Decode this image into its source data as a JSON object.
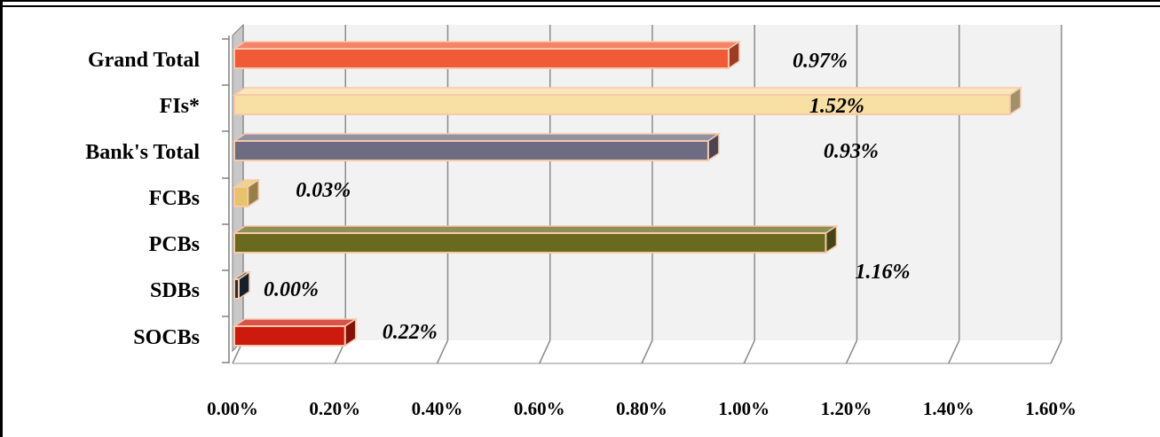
{
  "chart_data": {
    "type": "bar",
    "orientation": "horizontal",
    "style": "3d",
    "categories": [
      "Grand Total",
      "FIs*",
      "Bank's Total",
      "FCBs",
      "PCBs",
      "SDBs",
      "SOCBs"
    ],
    "values": [
      0.97,
      1.52,
      0.93,
      0.03,
      1.16,
      0.0,
      0.22
    ],
    "data_labels": [
      "0.97%",
      "1.52%",
      "0.93%",
      "0.03%",
      "1.16%",
      "0.00%",
      "0.22%"
    ],
    "bar_colors": [
      "#F15A37",
      "#F8DFA3",
      "#6E6C82",
      "#E7C46A",
      "#6A6A1E",
      "#1F3244",
      "#CC1A0E"
    ],
    "x_ticks": [
      0,
      0.2,
      0.4,
      0.6,
      0.8,
      1.0,
      1.2,
      1.4,
      1.6
    ],
    "x_tick_labels": [
      "0.00%",
      "0.20%",
      "0.40%",
      "0.60%",
      "0.80%",
      "1.00%",
      "1.20%",
      "1.40%",
      "1.60%"
    ],
    "xlim": [
      0,
      1.6
    ],
    "grid": true,
    "legend": "none",
    "title": "",
    "xlabel": "",
    "ylabel": ""
  }
}
